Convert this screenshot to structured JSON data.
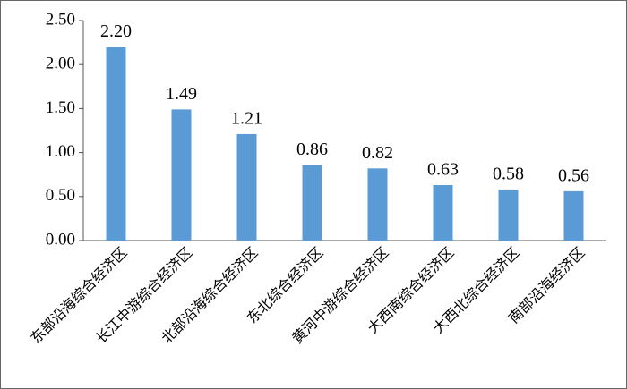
{
  "chart_data": {
    "type": "bar",
    "categories": [
      "东部沿海综合经济区",
      "长江中游综合经济区",
      "北部沿海综合经济区",
      "东北综合经济区",
      "黄河中游综合经济区",
      "大西南综合经济区",
      "大西北综合经济区",
      "南部沿海经济区"
    ],
    "values": [
      2.2,
      1.49,
      1.21,
      0.86,
      0.82,
      0.63,
      0.58,
      0.56
    ],
    "value_labels": [
      "2.20",
      "1.49",
      "1.21",
      "0.86",
      "0.82",
      "0.63",
      "0.58",
      "0.56"
    ],
    "color": "#5b9bd5",
    "ylim": [
      0,
      2.5
    ],
    "yticks": [
      {
        "value": 0,
        "label": "0.00"
      },
      {
        "value": 0.5,
        "label": "0.50"
      },
      {
        "value": 1,
        "label": "1.00"
      },
      {
        "value": 1.5,
        "label": "1.50"
      },
      {
        "value": 2,
        "label": "2.00"
      },
      {
        "value": 2.5,
        "label": "2.50"
      }
    ],
    "grid": false
  }
}
